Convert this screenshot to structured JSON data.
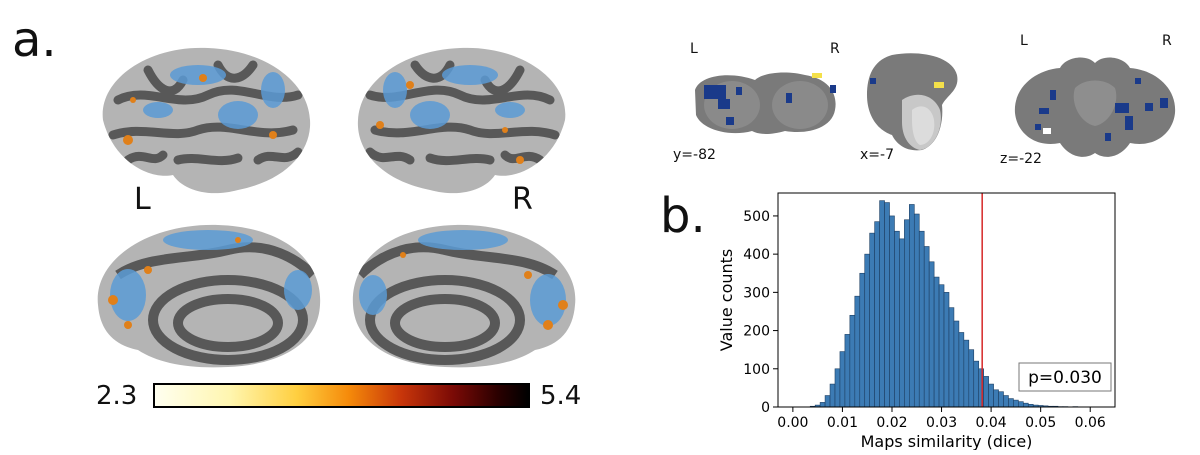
{
  "panel_a": {
    "letter": "a.",
    "left_label": "L",
    "right_label": "R",
    "colorbar": {
      "min_label": "2.3",
      "max_label": "5.4"
    },
    "slices": {
      "coronal": {
        "left": "L",
        "right": "R",
        "coord": "y=-82"
      },
      "sagittal": {
        "coord": "x=-7"
      },
      "axial": {
        "left": "L",
        "right": "R",
        "coord": "z=-22"
      }
    },
    "colors": {
      "overlay_blue": "#5b9bd5",
      "overlay_hot": "#e06010",
      "sulci": "#585858",
      "gyri": "#b4b4b4",
      "slice_blue": "#1a3a8a"
    }
  },
  "panel_b": {
    "letter": "b.",
    "annotation": "p=0.030",
    "chart_data": {
      "type": "bar",
      "xlabel": "Maps similarity (dice)",
      "ylabel": "Value counts",
      "xlim": [
        -0.003,
        0.065
      ],
      "ylim": [
        0,
        560
      ],
      "xticks": [
        "0.00",
        "0.01",
        "0.02",
        "0.03",
        "0.04",
        "0.05",
        "0.06"
      ],
      "xtick_values": [
        0.0,
        0.01,
        0.02,
        0.03,
        0.04,
        0.05,
        0.06
      ],
      "yticks": [
        "0",
        "100",
        "200",
        "300",
        "400",
        "500"
      ],
      "ytick_values": [
        0,
        100,
        200,
        300,
        400,
        500
      ],
      "bin_width": 0.001,
      "bin_start": 0.0035,
      "counts": [
        2,
        5,
        12,
        30,
        60,
        100,
        145,
        190,
        240,
        290,
        350,
        400,
        455,
        485,
        540,
        535,
        500,
        460,
        440,
        490,
        530,
        505,
        460,
        420,
        380,
        340,
        320,
        300,
        260,
        225,
        195,
        175,
        150,
        120,
        100,
        80,
        60,
        45,
        40,
        30,
        22,
        18,
        14,
        10,
        7,
        5,
        4,
        3,
        2,
        2,
        1,
        1,
        0,
        1
      ],
      "observed_value": 0.0382,
      "bar_color": "#3c7bb4",
      "line_color": "#d62728"
    }
  }
}
